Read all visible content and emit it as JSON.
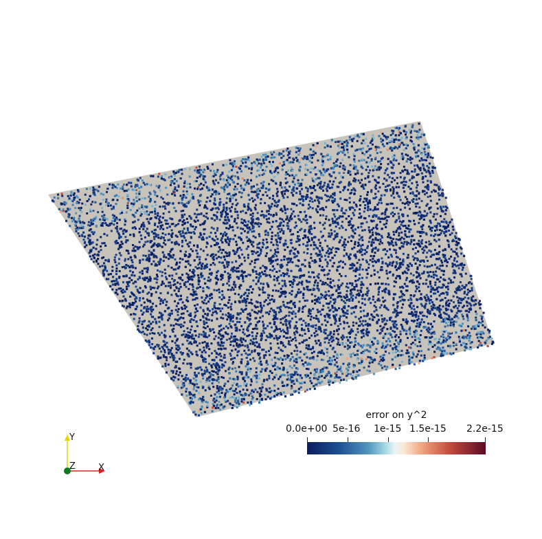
{
  "colorbar": {
    "title": "error on y^2",
    "tick_labels": [
      "0.0e+00",
      "5e-16",
      "1e-15",
      "1.5e-15",
      "2.2e-15"
    ],
    "range": [
      0.0,
      2.2e-15
    ],
    "colormap": [
      "#0a1d5e",
      "#1f4f93",
      "#4f94bf",
      "#a8d9e6",
      "#e8f4f6",
      "#fbe7d6",
      "#f0a783",
      "#c34a3c",
      "#5a0a27"
    ]
  },
  "orientation_axes": {
    "x_label": "X",
    "y_label": "Y",
    "z_label": "Z",
    "x_color": "#e0201b",
    "y_color": "#e6d400",
    "z_color": "#0f7a1f"
  },
  "surface": {
    "base_color": "#c8c4bc",
    "dominant_point_color": "#0a1d5e"
  }
}
